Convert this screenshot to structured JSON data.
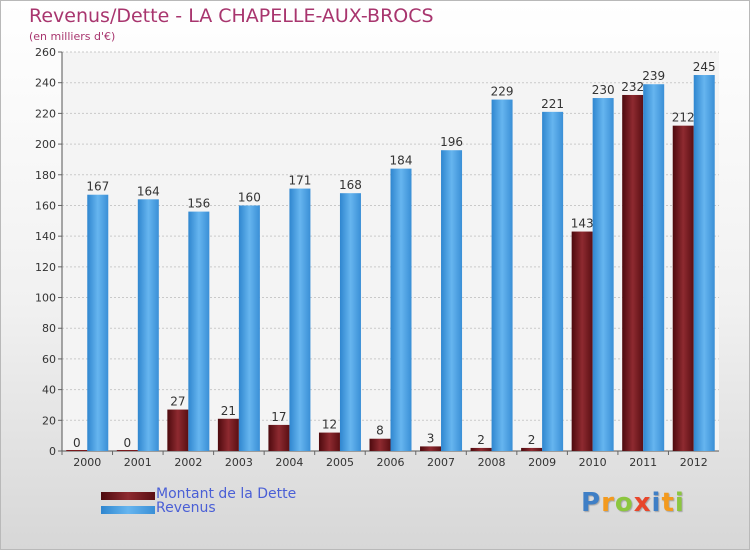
{
  "chart_data": {
    "type": "bar",
    "title": "Revenus/Dette - LA CHAPELLE-AUX-BROCS",
    "subtitle": "(en milliers d'€)",
    "categories": [
      "2000",
      "2001",
      "2002",
      "2003",
      "2004",
      "2005",
      "2006",
      "2007",
      "2008",
      "2009",
      "2010",
      "2011",
      "2012"
    ],
    "series": [
      {
        "name": "Montant de la Dette",
        "color": "#7a1a1e",
        "values": [
          0,
          0,
          27,
          21,
          17,
          12,
          8,
          3,
          2,
          2,
          143,
          232,
          212
        ]
      },
      {
        "name": "Revenus",
        "color": "#4fa3e4",
        "values": [
          167,
          164,
          156,
          160,
          171,
          168,
          184,
          196,
          229,
          221,
          230,
          239,
          245
        ]
      }
    ],
    "ylim": [
      0,
      260
    ],
    "yticks": [
      0,
      20,
      40,
      60,
      80,
      100,
      120,
      140,
      160,
      180,
      200,
      220,
      240,
      260
    ],
    "grid": true,
    "legend_position": "bottom-left"
  },
  "logo": {
    "letters": [
      {
        "ch": "P",
        "color": "#3f7fc6"
      },
      {
        "ch": "r",
        "color": "#f39a1e"
      },
      {
        "ch": "o",
        "color": "#8cc63f"
      },
      {
        "ch": "x",
        "color": "#e8462b"
      },
      {
        "ch": "i",
        "color": "#3f7fc6"
      },
      {
        "ch": "t",
        "color": "#f39a1e"
      },
      {
        "ch": "i",
        "color": "#8cc63f"
      }
    ]
  }
}
